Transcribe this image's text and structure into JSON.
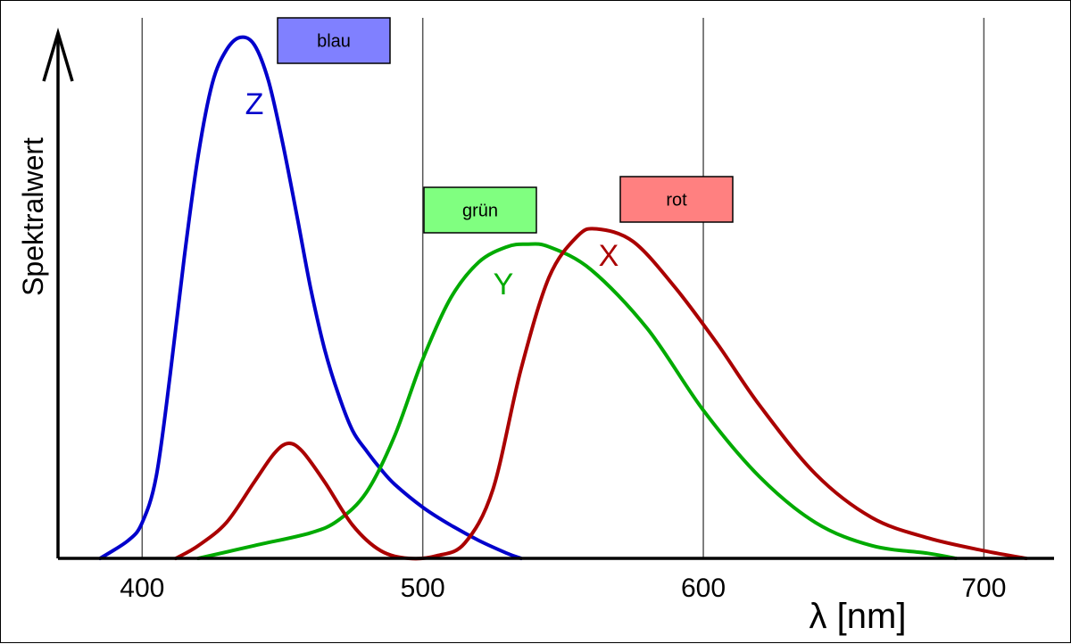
{
  "chart_data": {
    "type": "line",
    "title": "",
    "xlabel": "λ [nm]",
    "ylabel": "Spektralwert",
    "xlim": [
      370,
      725
    ],
    "ylim": [
      0,
      2.05
    ],
    "x_ticks": [
      400,
      500,
      600,
      700
    ],
    "x_tick_labels": [
      "400",
      "500",
      "600",
      "700"
    ],
    "grid": "vertical lines at x ticks",
    "series": [
      {
        "name": "Z",
        "color": "#0000cc",
        "box_label": "blau",
        "box_color": "#8080ff",
        "points": [
          [
            385,
            0.0
          ],
          [
            395,
            0.07
          ],
          [
            400,
            0.14
          ],
          [
            405,
            0.32
          ],
          [
            410,
            0.72
          ],
          [
            415,
            1.18
          ],
          [
            420,
            1.58
          ],
          [
            425,
            1.86
          ],
          [
            430,
            1.99
          ],
          [
            435,
            2.04
          ],
          [
            440,
            2.01
          ],
          [
            445,
            1.87
          ],
          [
            450,
            1.63
          ],
          [
            455,
            1.35
          ],
          [
            460,
            1.06
          ],
          [
            465,
            0.82
          ],
          [
            470,
            0.64
          ],
          [
            475,
            0.5
          ],
          [
            480,
            0.42
          ],
          [
            485,
            0.35
          ],
          [
            490,
            0.29
          ],
          [
            500,
            0.2
          ],
          [
            510,
            0.13
          ],
          [
            520,
            0.07
          ],
          [
            530,
            0.02
          ],
          [
            535,
            0.0
          ]
        ]
      },
      {
        "name": "Y",
        "color": "#00aa00",
        "box_label": "grün",
        "box_color": "#80ff80",
        "points": [
          [
            420,
            0.0
          ],
          [
            440,
            0.05
          ],
          [
            460,
            0.1
          ],
          [
            470,
            0.15
          ],
          [
            480,
            0.26
          ],
          [
            490,
            0.48
          ],
          [
            500,
            0.78
          ],
          [
            510,
            1.02
          ],
          [
            520,
            1.16
          ],
          [
            530,
            1.22
          ],
          [
            537,
            1.23
          ],
          [
            545,
            1.22
          ],
          [
            560,
            1.13
          ],
          [
            580,
            0.9
          ],
          [
            600,
            0.58
          ],
          [
            620,
            0.32
          ],
          [
            640,
            0.14
          ],
          [
            660,
            0.05
          ],
          [
            680,
            0.02
          ],
          [
            690,
            0.0
          ]
        ]
      },
      {
        "name": "X",
        "color": "#aa0000",
        "box_label": "rot",
        "box_color": "#ff8080",
        "points": [
          [
            412,
            0.0
          ],
          [
            420,
            0.05
          ],
          [
            430,
            0.14
          ],
          [
            440,
            0.3
          ],
          [
            447,
            0.41
          ],
          [
            452,
            0.45
          ],
          [
            457,
            0.42
          ],
          [
            465,
            0.3
          ],
          [
            475,
            0.13
          ],
          [
            485,
            0.03
          ],
          [
            495,
            0.0
          ],
          [
            505,
            0.01
          ],
          [
            515,
            0.06
          ],
          [
            525,
            0.27
          ],
          [
            535,
            0.74
          ],
          [
            545,
            1.1
          ],
          [
            555,
            1.26
          ],
          [
            562,
            1.29
          ],
          [
            575,
            1.24
          ],
          [
            590,
            1.06
          ],
          [
            605,
            0.84
          ],
          [
            620,
            0.6
          ],
          [
            640,
            0.33
          ],
          [
            660,
            0.16
          ],
          [
            680,
            0.08
          ],
          [
            700,
            0.03
          ],
          [
            715,
            0.0
          ]
        ]
      }
    ]
  }
}
